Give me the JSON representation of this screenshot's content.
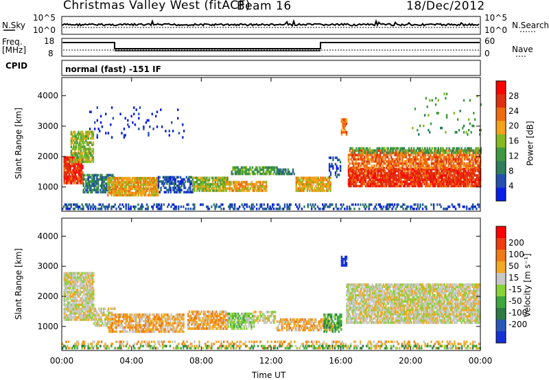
{
  "header": {
    "station": "Christmas Valley West (fitACF)",
    "beam": "Beam 16",
    "date": "18/Dec/2012"
  },
  "side_labels": {
    "nsky": "N.Sky",
    "nsearch": "N.Search",
    "freq": "Freq.",
    "mhz": "[MHz]",
    "nave": "Nave",
    "cpid": "CPID"
  },
  "noise_panel": {
    "y_top_label": "10^5",
    "y_bot_label": "10^0",
    "right_top": "10^5",
    "right_bot": "10^0"
  },
  "freq_panel": {
    "left_top": "18",
    "left_bot": "8",
    "right_top": "60",
    "right_bot": "0"
  },
  "cpid_panel": {
    "mode": "normal (fast) -151 IF"
  },
  "x_axis": {
    "label": "Time UT",
    "ticks": [
      "00:00",
      "04:00",
      "08:00",
      "12:00",
      "16:00",
      "20:00",
      "00:00"
    ]
  },
  "chart_data": [
    {
      "type": "heatmap",
      "title": "",
      "ylabel": "Slant Range [km]",
      "ylim": [
        200,
        4600
      ],
      "yticks": [
        "1000",
        "2000",
        "3000",
        "4000"
      ],
      "colorbar": {
        "label": "Power [dB]",
        "ticks": [
          "4",
          "8",
          "12",
          "16",
          "20",
          "24",
          "28"
        ],
        "colors": [
          "#0a1ee8",
          "#234fb0",
          "#2f7d5a",
          "#3f9a3f",
          "#86b820",
          "#f4a21a",
          "#f06a10",
          "#e03010",
          "#ff0000"
        ]
      }
    },
    {
      "type": "heatmap",
      "title": "",
      "ylabel": "Slant Range [km]",
      "ylim": [
        200,
        4600
      ],
      "yticks": [
        "1000",
        "2000",
        "3000",
        "4000"
      ],
      "colorbar": {
        "label": "Velocity [m s⁻¹]",
        "ticks": [
          "200",
          "100",
          "50",
          "15",
          "-15",
          "-50",
          "-100",
          "-200"
        ],
        "colors": [
          "#1630d8",
          "#2a58b8",
          "#2d7a45",
          "#3ea83c",
          "#8ad23a",
          "#c8c8c8",
          "#f2a822",
          "#f07a16",
          "#ef3c10",
          "#ff0000"
        ]
      }
    }
  ]
}
